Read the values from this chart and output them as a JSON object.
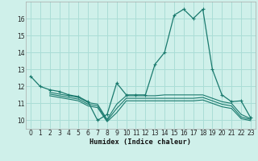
{
  "xlabel": "Humidex (Indice chaleur)",
  "bg_color": "#cff0ea",
  "grid_color": "#aaddd6",
  "line_color": "#1a7a6e",
  "xlim": [
    -0.5,
    23.5
  ],
  "ylim": [
    9.5,
    17.0
  ],
  "xticks": [
    0,
    1,
    2,
    3,
    4,
    5,
    6,
    7,
    8,
    9,
    10,
    11,
    12,
    13,
    14,
    15,
    16,
    17,
    18,
    19,
    20,
    21,
    22,
    23
  ],
  "yticks": [
    10,
    11,
    12,
    13,
    14,
    15,
    16
  ],
  "line1_x": [
    0,
    1,
    2,
    3,
    4,
    5,
    6,
    7,
    8,
    9,
    10,
    11,
    12,
    13,
    14,
    15,
    16,
    17,
    18,
    19,
    20,
    21,
    22,
    23
  ],
  "line1_y": [
    12.6,
    12.0,
    11.8,
    11.7,
    11.5,
    11.4,
    11.1,
    10.0,
    10.35,
    12.2,
    11.5,
    11.5,
    11.5,
    13.3,
    14.0,
    16.2,
    16.55,
    16.0,
    16.55,
    13.0,
    11.5,
    11.1,
    11.15,
    10.15
  ],
  "line2_x": [
    2,
    3,
    4,
    5,
    6,
    7,
    8,
    9,
    10,
    11,
    12,
    13,
    14,
    15,
    16,
    17,
    18,
    19,
    20,
    21,
    22,
    23
  ],
  "line2_y": [
    11.65,
    11.55,
    11.45,
    11.35,
    11.05,
    10.95,
    10.05,
    10.95,
    11.45,
    11.45,
    11.45,
    11.45,
    11.5,
    11.5,
    11.5,
    11.5,
    11.5,
    11.3,
    11.1,
    11.0,
    10.35,
    10.1
  ],
  "line3_x": [
    2,
    3,
    4,
    5,
    6,
    7,
    8,
    9,
    10,
    11,
    12,
    13,
    14,
    15,
    16,
    17,
    18,
    19,
    20,
    21,
    22,
    23
  ],
  "line3_y": [
    11.55,
    11.45,
    11.35,
    11.25,
    10.95,
    10.85,
    9.98,
    10.7,
    11.3,
    11.3,
    11.3,
    11.3,
    11.3,
    11.3,
    11.3,
    11.3,
    11.35,
    11.15,
    10.95,
    10.85,
    10.2,
    10.05
  ],
  "line4_x": [
    2,
    3,
    4,
    5,
    6,
    7,
    8,
    9,
    10,
    11,
    12,
    13,
    14,
    15,
    16,
    17,
    18,
    19,
    20,
    21,
    22,
    23
  ],
  "line4_y": [
    11.45,
    11.35,
    11.25,
    11.15,
    10.85,
    10.75,
    9.92,
    10.45,
    11.15,
    11.15,
    11.15,
    11.15,
    11.15,
    11.15,
    11.15,
    11.15,
    11.2,
    11.0,
    10.8,
    10.7,
    10.1,
    9.98
  ]
}
